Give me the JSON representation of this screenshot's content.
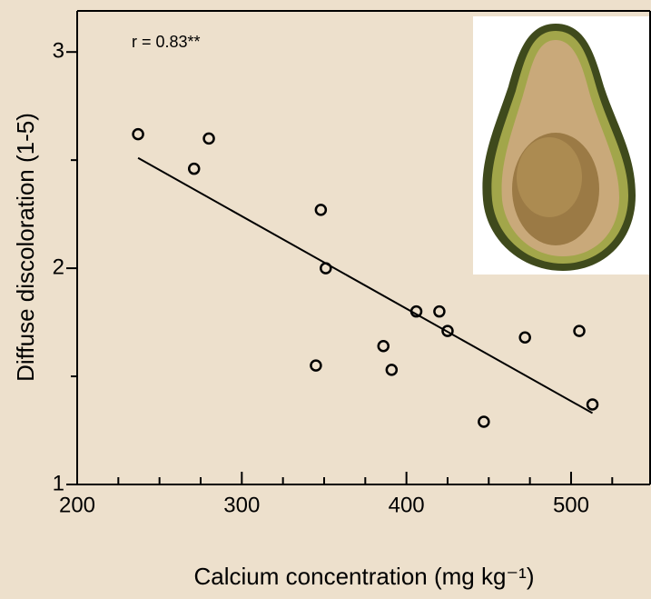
{
  "chart_data": {
    "type": "scatter",
    "ylabel": "Diffuse discoloration (1-5)",
    "xlabel": "Calcium concentration (mg kg⁻¹)",
    "annotation": "r = 0.83**",
    "x": [
      237,
      271,
      280,
      348,
      351,
      345,
      386,
      391,
      406,
      420,
      425,
      447,
      472,
      505,
      513
    ],
    "series": [
      {
        "color": "#000000",
        "values": [
          2.62,
          2.46,
          2.6,
          2.27,
          2.0,
          1.55,
          1.64,
          1.53,
          1.8,
          1.8,
          1.71,
          1.29,
          1.68,
          1.71,
          1.37
        ]
      }
    ],
    "trendline": {
      "x": [
        237,
        513
      ],
      "y": [
        2.51,
        1.33
      ],
      "color": "#000000"
    },
    "xlim": [
      200,
      548
    ],
    "ylim": [
      1,
      3.19
    ],
    "xticks": [
      200,
      300,
      400,
      500
    ],
    "xminorticks": [
      225,
      250,
      275,
      325,
      350,
      375,
      425,
      450,
      475,
      525
    ],
    "yticks": [
      1,
      2,
      3
    ],
    "yminorticks": [
      1.5,
      2.5
    ],
    "grid": false
  }
}
